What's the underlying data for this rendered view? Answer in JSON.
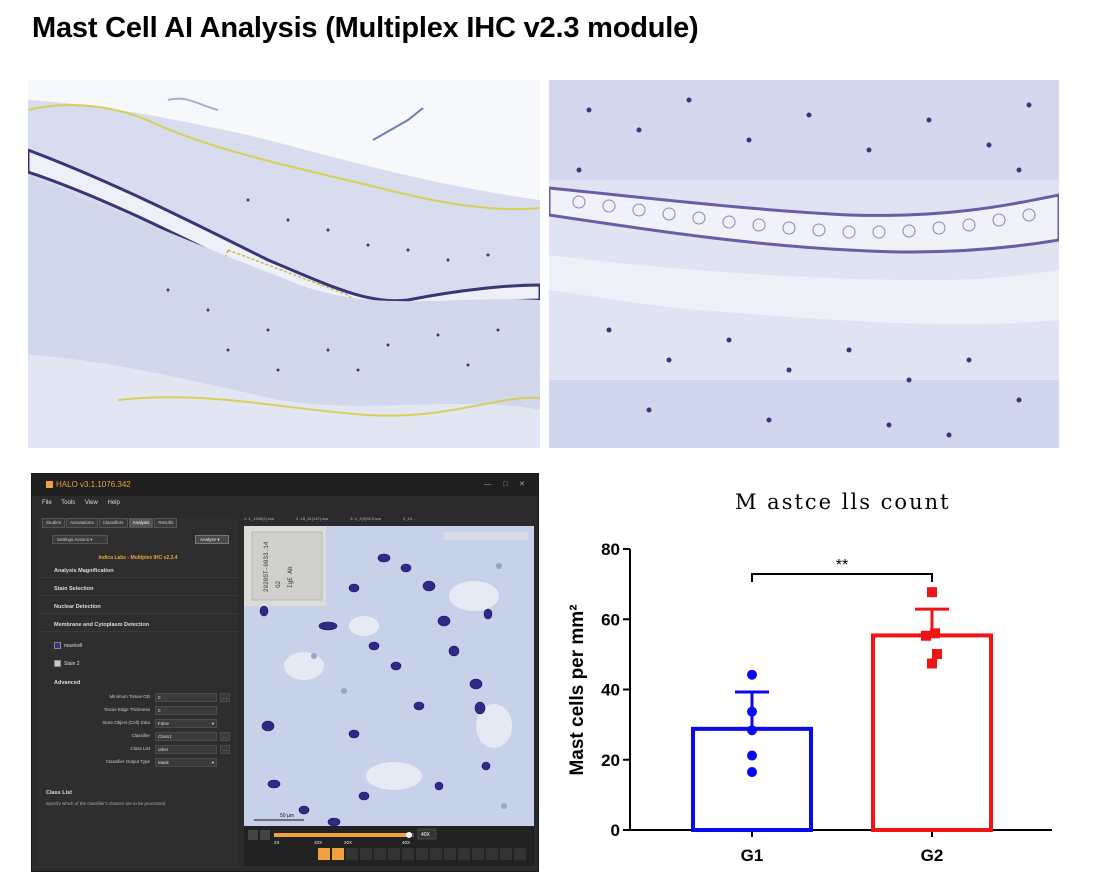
{
  "page": {
    "title": "Mast Cell AI Analysis (Multiplex IHC v2.3 module)"
  },
  "halo": {
    "app_title": "HALO v3.1.1076.342",
    "menu": [
      "File",
      "Tools",
      "View",
      "Help"
    ],
    "tabs": [
      "Studies",
      "Annotations",
      "Classifiers",
      "Analysis",
      "Results"
    ],
    "active_tab": "Analysis",
    "settings_actions_label": "Settings Actions",
    "analyze_label": "Analyze",
    "module_name": "Indica Labs - Multiplex IHC v2.3.4",
    "sections": [
      "Analysis Magnification",
      "Stain Selection",
      "Nuclear Detection",
      "Membrane and Cytoplasm Detection"
    ],
    "stains": [
      {
        "label": "mastcell",
        "color": "#3a3186"
      },
      {
        "label": "Stain 2",
        "color": "#c8c8c8"
      }
    ],
    "advanced_label": "Advanced",
    "fields": [
      {
        "label": "Minimum Tissue OD",
        "value": "0",
        "has_dots": true
      },
      {
        "label": "Tissue Edge Thickness",
        "value": "0",
        "has_dots": false
      },
      {
        "label": "Store Object (Cell) Data",
        "value": "False",
        "has_dots": false
      },
      {
        "label": "Classifier",
        "value": "Class1",
        "has_dots": true
      },
      {
        "label": "Class List",
        "value": "other",
        "has_dots": true
      },
      {
        "label": "Classifier Output Type",
        "value": "Mask",
        "has_dots": false
      }
    ],
    "class_list_title": "Class List",
    "class_list_desc": "Specify which of the classifier's classes are to be processed.",
    "file_tabs": [
      "1 -1_1300(2).svs",
      "2 -16_21(147).svs",
      "3 -1_1(9)9C3.svs",
      "2_13 ..."
    ],
    "scale_bar": "50 μm",
    "zoom_marks": [
      "2X",
      "5X",
      "10X",
      "20X",
      "40X"
    ],
    "zoom_current": "40X"
  },
  "chart_data": {
    "type": "bar",
    "title": "M astce lls count",
    "xlabel": "",
    "ylabel": "Mast cells per mm²",
    "ylim": [
      0,
      80
    ],
    "yticks": [
      0,
      20,
      40,
      60,
      80
    ],
    "categories": [
      "G1",
      "G2"
    ],
    "series": [
      {
        "values": [
          28.8,
          55.4
        ],
        "errors": [
          10.5,
          7.5
        ],
        "colors": [
          "#0a0af0",
          "#f01414"
        ]
      }
    ],
    "points": [
      [
        44.2,
        33.7,
        28.4,
        21.2,
        16.5
      ],
      [
        67.7,
        56.0,
        55.3,
        50.1,
        47.4
      ]
    ],
    "annotation": "**"
  }
}
